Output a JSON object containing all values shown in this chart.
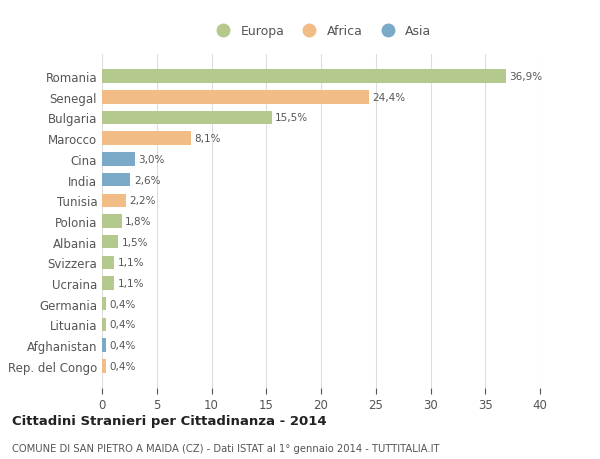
{
  "countries": [
    "Romania",
    "Senegal",
    "Bulgaria",
    "Marocco",
    "Cina",
    "India",
    "Tunisia",
    "Polonia",
    "Albania",
    "Svizzera",
    "Ucraina",
    "Germania",
    "Lituania",
    "Afghanistan",
    "Rep. del Congo"
  ],
  "values": [
    36.9,
    24.4,
    15.5,
    8.1,
    3.0,
    2.6,
    2.2,
    1.8,
    1.5,
    1.1,
    1.1,
    0.4,
    0.4,
    0.4,
    0.4
  ],
  "labels": [
    "36,9%",
    "24,4%",
    "15,5%",
    "8,1%",
    "3,0%",
    "2,6%",
    "2,2%",
    "1,8%",
    "1,5%",
    "1,1%",
    "1,1%",
    "0,4%",
    "0,4%",
    "0,4%",
    "0,4%"
  ],
  "continents": [
    "Europa",
    "Africa",
    "Europa",
    "Africa",
    "Asia",
    "Asia",
    "Africa",
    "Europa",
    "Europa",
    "Europa",
    "Europa",
    "Europa",
    "Europa",
    "Asia",
    "Africa"
  ],
  "colors": {
    "Europa": "#b5c98e",
    "Africa": "#f2bc87",
    "Asia": "#7aaac8"
  },
  "title": "Cittadini Stranieri per Cittadinanza - 2014",
  "subtitle": "COMUNE DI SAN PIETRO A MAIDA (CZ) - Dati ISTAT al 1° gennaio 2014 - TUTTITALIA.IT",
  "xlim": [
    0,
    40
  ],
  "xticks": [
    0,
    5,
    10,
    15,
    20,
    25,
    30,
    35,
    40
  ],
  "bg_color": "#ffffff",
  "grid_color": "#dddddd",
  "bar_height": 0.65
}
